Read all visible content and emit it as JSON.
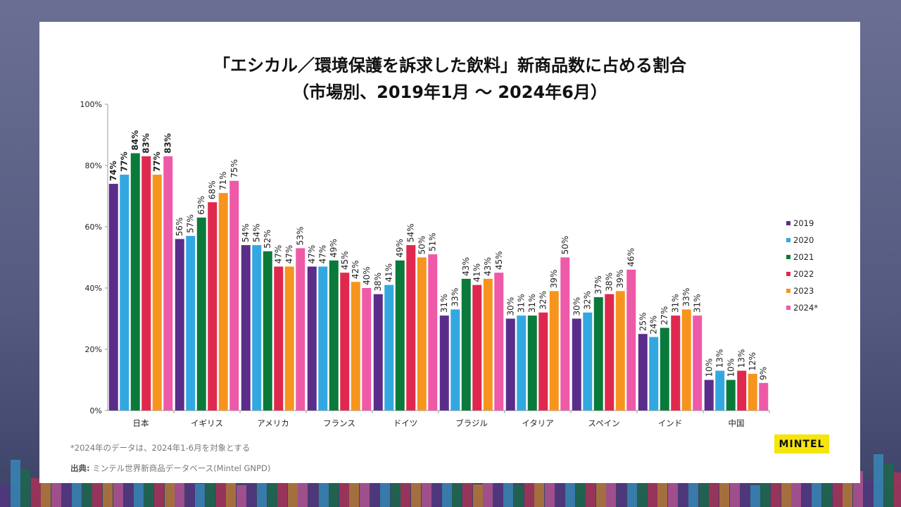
{
  "chart_data": {
    "type": "bar",
    "title": "「エシカル／環境保護を訴求した飲料」新商品数に占める割合",
    "subtitle": "（市場別、2019年1月 ～ 2024年6月）",
    "categories": [
      "日本",
      "イギリス",
      "アメリカ",
      "フランス",
      "ドイツ",
      "ブラジル",
      "イタリア",
      "スペイン",
      "インド",
      "中国"
    ],
    "series": [
      {
        "name": "2019",
        "color": "#5b2d8a",
        "values": [
          74,
          56,
          54,
          47,
          38,
          31,
          30,
          30,
          25,
          10
        ]
      },
      {
        "name": "2020",
        "color": "#33a8e0",
        "values": [
          77,
          57,
          54,
          47,
          41,
          33,
          31,
          32,
          24,
          13
        ]
      },
      {
        "name": "2021",
        "color": "#0a7a3a",
        "values": [
          84,
          63,
          52,
          49,
          49,
          43,
          31,
          37,
          27,
          10
        ]
      },
      {
        "name": "2022",
        "color": "#e0284e",
        "values": [
          83,
          68,
          47,
          45,
          54,
          41,
          32,
          38,
          31,
          13
        ]
      },
      {
        "name": "2023",
        "color": "#f7941d",
        "values": [
          77,
          71,
          47,
          42,
          50,
          43,
          39,
          39,
          33,
          12
        ]
      },
      {
        "name": "2024*",
        "color": "#ee5aa8",
        "values": [
          83,
          75,
          53,
          40,
          51,
          45,
          50,
          46,
          31,
          9
        ]
      }
    ],
    "yticks": [
      "0%",
      "20%",
      "40%",
      "60%",
      "80%",
      "100%"
    ],
    "ylim": [
      0,
      100
    ],
    "legend": "right",
    "grid": false
  },
  "footnote": "*2024年のデータは、2024年1-6月を対象とする",
  "source_label": "出典:",
  "source": " ミンテル世界新商品データベース(Mintel GNPD)",
  "logo": "MINTEL"
}
